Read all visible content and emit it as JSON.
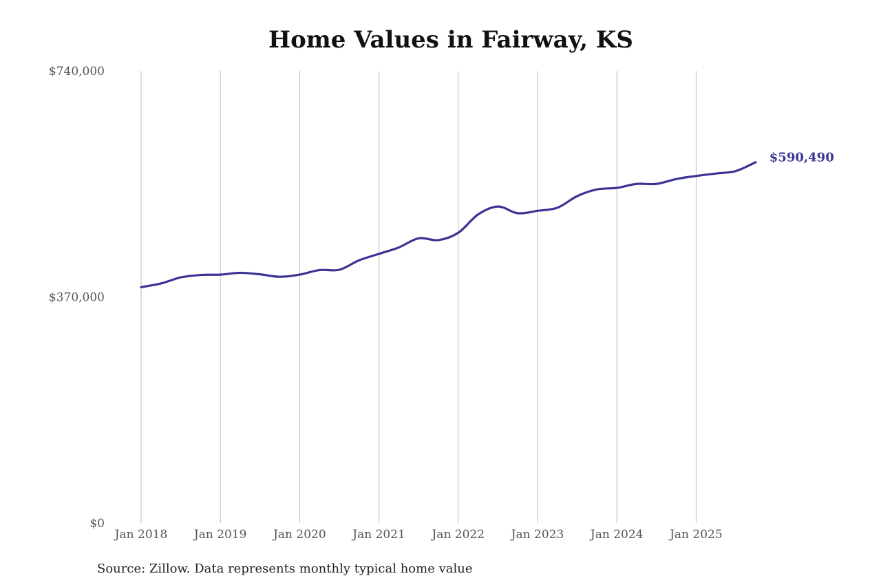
{
  "chart_data": {
    "type": "line",
    "title": "Home Values in Fairway, KS",
    "xlabel": "",
    "ylabel": "",
    "ylim": [
      0,
      740000
    ],
    "y_ticks": [
      "$0",
      "$370,000",
      "$740,000"
    ],
    "y_tick_values": [
      0,
      370000,
      740000
    ],
    "x_ticks": [
      "Jan 2018",
      "Jan 2019",
      "Jan 2020",
      "Jan 2021",
      "Jan 2022",
      "Jan 2023",
      "Jan 2024",
      "Jan 2025"
    ],
    "grid": "vertical lines at each January",
    "legend": "none",
    "line_color": "#3b3494",
    "end_label": "$590,490",
    "series": [
      {
        "x": [
          "2018-01",
          "2018-04",
          "2018-07",
          "2018-10",
          "2019-01",
          "2019-04",
          "2019-07",
          "2019-10",
          "2020-01",
          "2020-04",
          "2020-07",
          "2020-10",
          "2021-01",
          "2021-04",
          "2021-07",
          "2021-10",
          "2022-01",
          "2022-04",
          "2022-07",
          "2022-10",
          "2023-01",
          "2023-04",
          "2023-07",
          "2023-10",
          "2024-01",
          "2024-04",
          "2024-07",
          "2024-10",
          "2025-01",
          "2025-04",
          "2025-07",
          "2025-10"
        ],
        "values": [
          386000,
          392000,
          402000,
          406000,
          406500,
          409500,
          407000,
          403000,
          406500,
          414000,
          414500,
          430000,
          440500,
          451000,
          466000,
          463000,
          475000,
          505000,
          518000,
          507000,
          511000,
          516000,
          535000,
          546000,
          548500,
          555000,
          555000,
          563000,
          568000,
          572000,
          576000,
          590490
        ]
      }
    ]
  },
  "source": "Source: Zillow. Data represents monthly typical home value"
}
